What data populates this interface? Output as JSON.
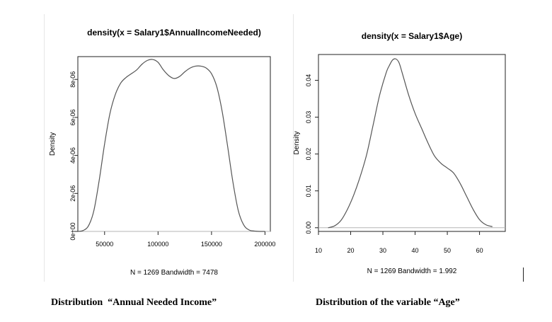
{
  "chart_data": [
    {
      "type": "line",
      "title": "density(x = Salary1$AnnualIncomeNeeded)",
      "xlabel": "N = 1269   Bandwidth = 7478",
      "ylabel": "Density",
      "xlim": [
        25000,
        205000
      ],
      "ylim": [
        0,
        9.2e-06
      ],
      "x_ticks": [
        50000,
        100000,
        150000,
        200000
      ],
      "x_tick_labels": [
        "50000",
        "100000",
        "150000",
        "200000"
      ],
      "y_ticks": [
        0,
        2e-06,
        4e-06,
        6e-06,
        8e-06
      ],
      "y_tick_labels": [
        "0e+00",
        "2e-06",
        "4e-06",
        "6e-06",
        "8e-06"
      ],
      "grid": false,
      "series": [
        {
          "x": [
            25000,
            30000,
            35000,
            40000,
            45000,
            50000,
            55000,
            60000,
            65000,
            70000,
            75000,
            80000,
            85000,
            90000,
            95000,
            100000,
            105000,
            110000,
            115000,
            120000,
            125000,
            130000,
            135000,
            140000,
            145000,
            150000,
            155000,
            160000,
            165000,
            170000,
            175000,
            180000,
            185000,
            190000,
            195000,
            200000
          ],
          "y": [
            0.0,
            5e-08,
            3e-07,
            1.1e-06,
            2.7e-06,
            4.6e-06,
            6.2e-06,
            7.2e-06,
            7.8e-06,
            8.1e-06,
            8.3e-06,
            8.5e-06,
            8.8e-06,
            9e-06,
            9.05e-06,
            8.9e-06,
            8.5e-06,
            8.2e-06,
            8.05e-06,
            8.15e-06,
            8.4e-06,
            8.6e-06,
            8.7e-06,
            8.7e-06,
            8.6e-06,
            8.3e-06,
            7.6e-06,
            6.3e-06,
            4.5e-06,
            2.6e-06,
            1.1e-06,
            3.5e-07,
            8e-08,
            2e-08,
            0.0,
            0.0
          ]
        }
      ]
    },
    {
      "type": "line",
      "title": "density(x = Salary1$Age)",
      "xlabel": "N = 1269   Bandwidth = 1.992",
      "ylabel": "Density",
      "xlim": [
        10,
        68
      ],
      "ylim": [
        -0.001,
        0.047
      ],
      "x_ticks": [
        10,
        20,
        30,
        40,
        50,
        60
      ],
      "x_tick_labels": [
        "10",
        "20",
        "30",
        "40",
        "50",
        "60"
      ],
      "y_ticks": [
        0.0,
        0.01,
        0.02,
        0.03,
        0.04
      ],
      "y_tick_labels": [
        "0.00",
        "0.01",
        "0.02",
        "0.03",
        "0.04"
      ],
      "grid": false,
      "series": [
        {
          "x": [
            13,
            15,
            17,
            19,
            21,
            23,
            25,
            27,
            29,
            31,
            32,
            33,
            34,
            35,
            36,
            38,
            40,
            42,
            44,
            46,
            48,
            50,
            52,
            54,
            56,
            58,
            60,
            62,
            64
          ],
          "y": [
            0.0,
            0.0005,
            0.002,
            0.005,
            0.009,
            0.014,
            0.02,
            0.028,
            0.036,
            0.042,
            0.044,
            0.0455,
            0.0458,
            0.0448,
            0.042,
            0.036,
            0.031,
            0.027,
            0.023,
            0.0195,
            0.0175,
            0.0162,
            0.0148,
            0.012,
            0.0085,
            0.005,
            0.0022,
            0.0008,
            0.0003
          ]
        }
      ]
    }
  ],
  "captions": {
    "left": "Distribution  “Annual Needed Income”",
    "right": "Distribution of the variable “Age”"
  }
}
